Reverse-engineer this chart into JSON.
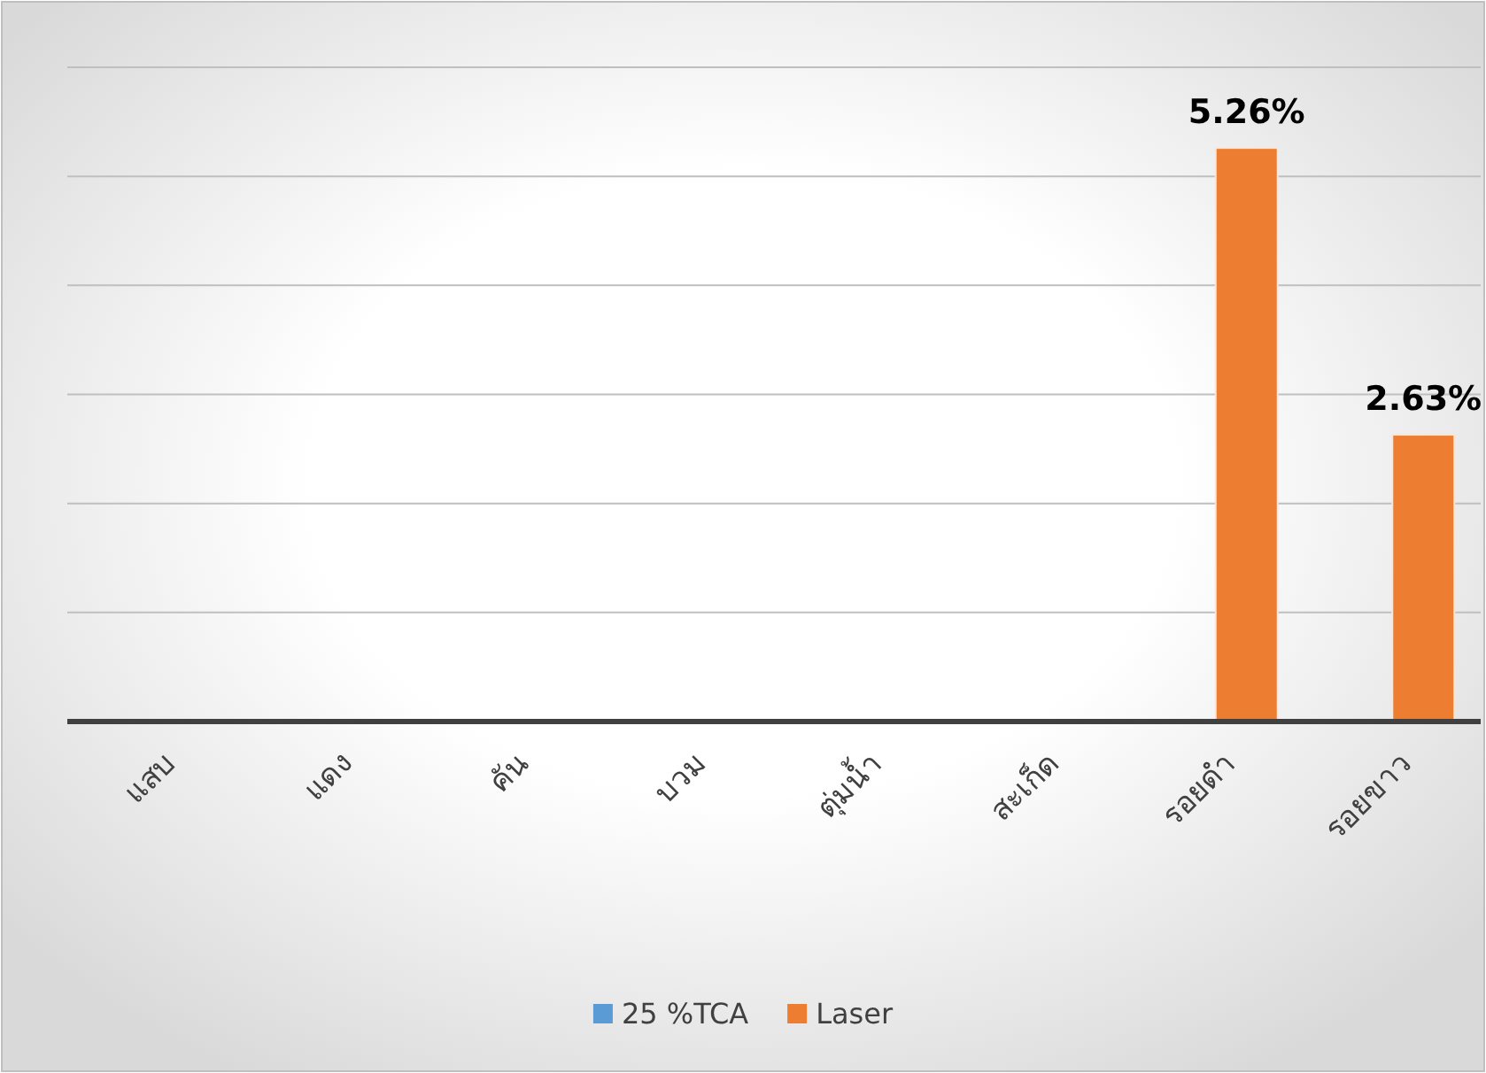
{
  "chart_data": {
    "type": "bar",
    "categories": [
      "แสบ",
      "แดง",
      "คัน",
      "บวม",
      "ตุ่มน้ำ",
      "สะเก็ด",
      "รอยดำ",
      "รอยขาว"
    ],
    "series": [
      {
        "name": "25 %TCA",
        "color": "#5b9bd5",
        "values": [
          0,
          0,
          0,
          0,
          0,
          0,
          0,
          0
        ]
      },
      {
        "name": "Laser",
        "color": "#ed7d31",
        "values": [
          0,
          0,
          0,
          0,
          0,
          0,
          5.26,
          2.63
        ],
        "value_labels": [
          null,
          null,
          null,
          null,
          null,
          null,
          "5.26%",
          "2.63%"
        ]
      }
    ],
    "ylim": [
      0,
      6
    ],
    "yticks": [
      {
        "value": 0,
        "label": null
      },
      {
        "value": 1,
        "label": null
      },
      {
        "value": 2,
        "label": null
      },
      {
        "value": 3,
        "label": null
      },
      {
        "value": 4,
        "label": null
      },
      {
        "value": 5,
        "label": null
      },
      {
        "value": 6,
        "label": null
      }
    ],
    "tick_labels": "x",
    "grid": "y",
    "legend": "bottom"
  }
}
